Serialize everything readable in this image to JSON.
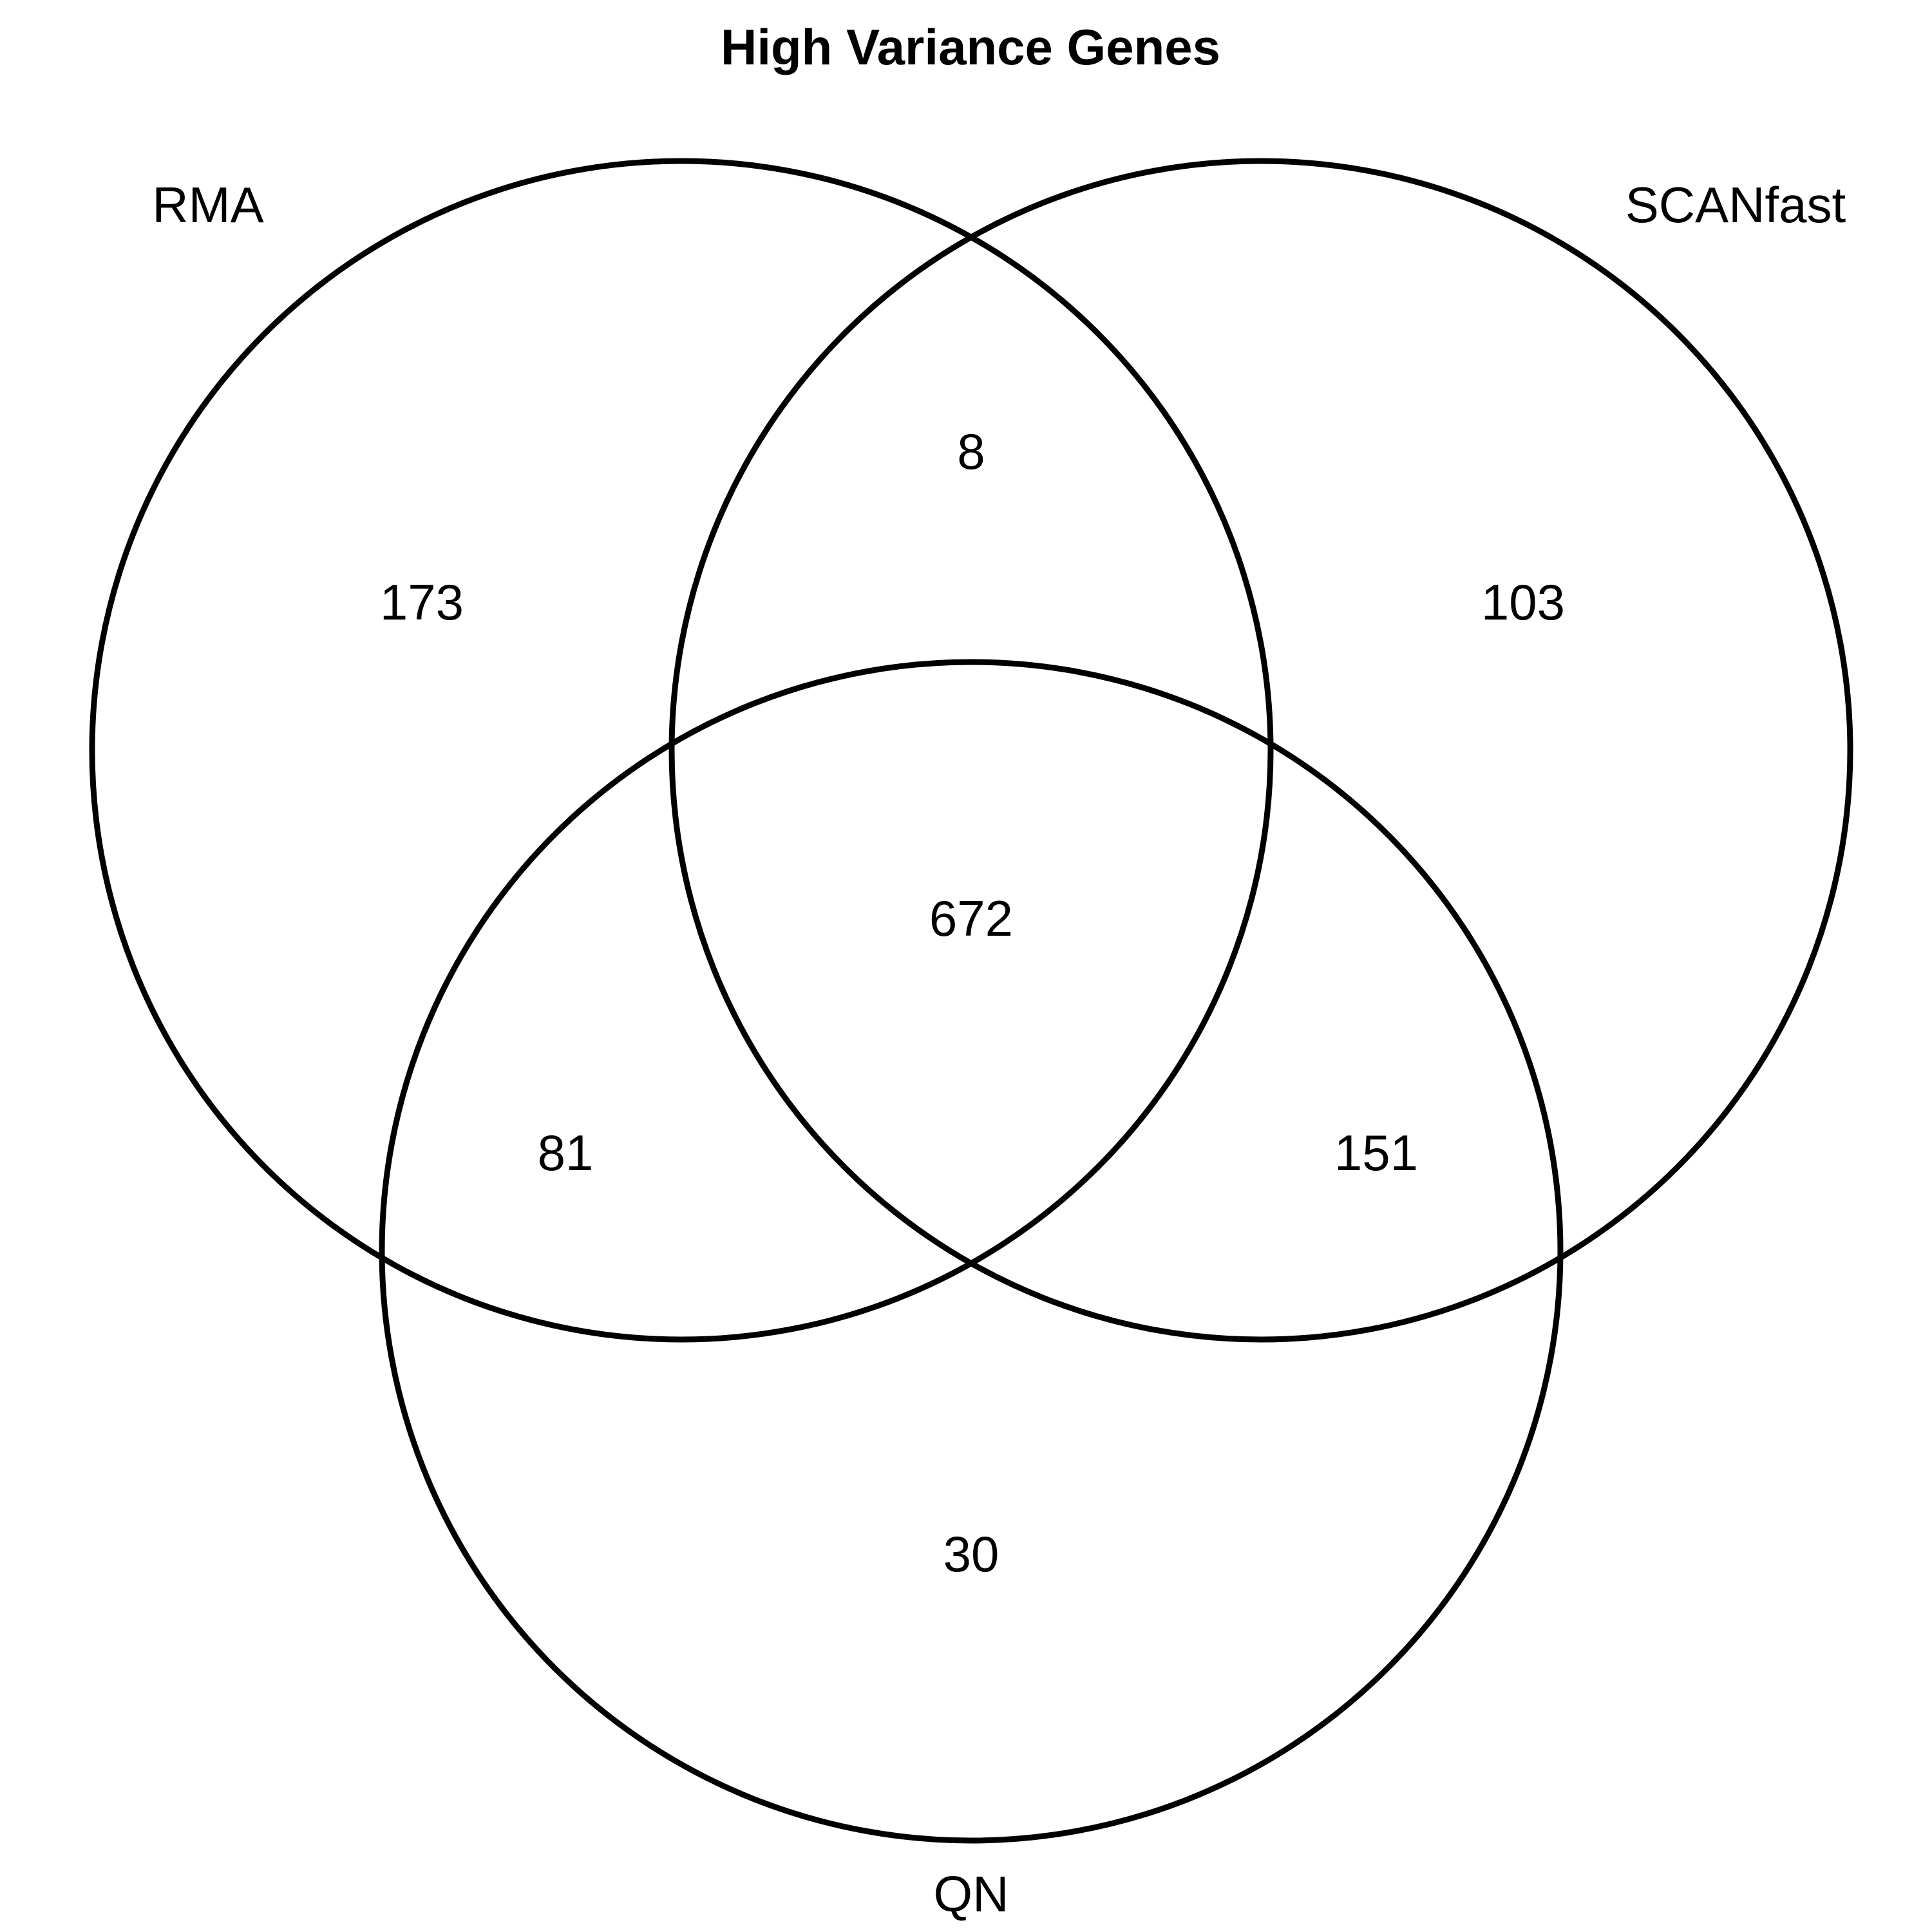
{
  "title": "High Variance Genes",
  "sets": {
    "rma": "RMA",
    "scanfast": "SCANfast",
    "qn": "QN"
  },
  "regions": {
    "rma_only": "173",
    "scanfast_only": "103",
    "qn_only": "30",
    "rma_scanfast": "8",
    "rma_qn": "81",
    "scanfast_qn": "151",
    "all_three": "672"
  },
  "colors": {
    "stroke": "#000000",
    "background": "#ffffff"
  }
}
